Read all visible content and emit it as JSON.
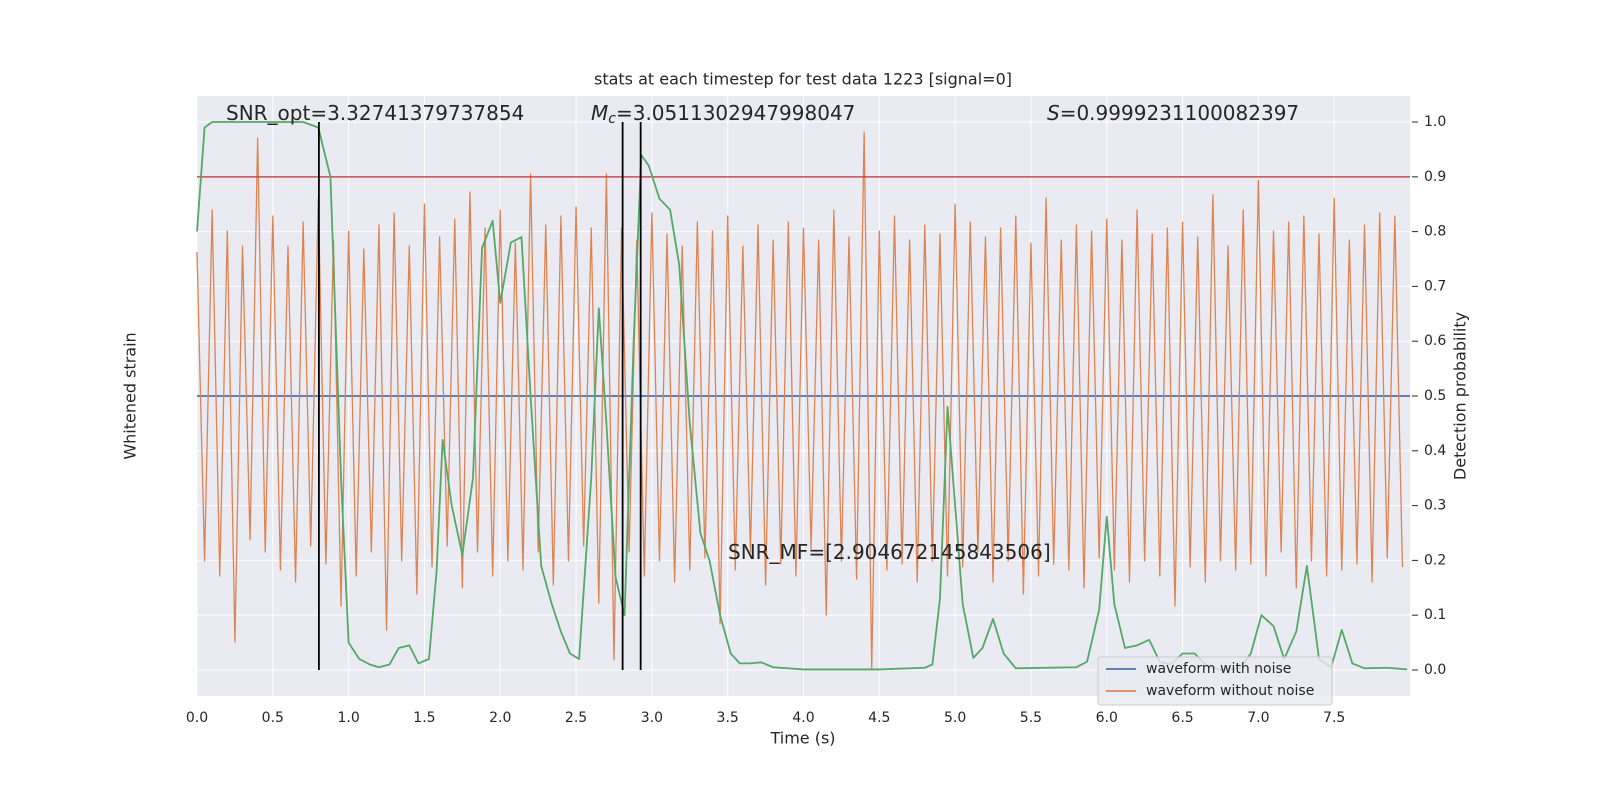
{
  "chart_data": {
    "type": "line",
    "title": "stats at each timestep for test data 1223 [signal=0]",
    "xlabel": "Time (s)",
    "ylabel": "Whitened strain",
    "y2label": "Detection probability",
    "xlim": [
      0,
      8
    ],
    "xticks": [
      {
        "value": 0,
        "label": "0.0"
      },
      {
        "value": 0.5,
        "label": "0.5"
      },
      {
        "value": 1,
        "label": "1.0"
      },
      {
        "value": 1.5,
        "label": "1.5"
      },
      {
        "value": 2,
        "label": "2.0"
      },
      {
        "value": 2.5,
        "label": "2.5"
      },
      {
        "value": 3,
        "label": "3.0"
      },
      {
        "value": 3.5,
        "label": "3.5"
      },
      {
        "value": 4,
        "label": "4.0"
      },
      {
        "value": 4.5,
        "label": "4.5"
      },
      {
        "value": 5,
        "label": "5.0"
      },
      {
        "value": 5.5,
        "label": "5.5"
      },
      {
        "value": 6,
        "label": "6.0"
      },
      {
        "value": 6.5,
        "label": "6.5"
      },
      {
        "value": 7,
        "label": "7.0"
      },
      {
        "value": 7.5,
        "label": "7.5"
      }
    ],
    "ylim": [
      -1,
      1
    ],
    "y2lim": [
      -0.0475,
      1.0475
    ],
    "y2ticks": [
      {
        "value": 0,
        "label": "0.0"
      },
      {
        "value": 0.1,
        "label": "0.1"
      },
      {
        "value": 0.2,
        "label": "0.2"
      },
      {
        "value": 0.3,
        "label": "0.3"
      },
      {
        "value": 0.4,
        "label": "0.4"
      },
      {
        "value": 0.5,
        "label": "0.5"
      },
      {
        "value": 0.6,
        "label": "0.6"
      },
      {
        "value": 0.7,
        "label": "0.7"
      },
      {
        "value": 0.8,
        "label": "0.8"
      },
      {
        "value": 0.9,
        "label": "0.9"
      },
      {
        "value": 1,
        "label": "1.0"
      }
    ],
    "grid": true,
    "legend": "lower right",
    "background": "#eaeaf2",
    "series": [
      {
        "name": "waveform with noise",
        "color": "#4c72b0",
        "x": [
          0,
          8
        ],
        "values": [
          0,
          0
        ]
      },
      {
        "name": "waveform without noise",
        "color": "#dd8452",
        "x": [
          0,
          0.05,
          0.1,
          0.15,
          0.2,
          0.25,
          0.3,
          0.35,
          0.4,
          0.45,
          0.5,
          0.55,
          0.6,
          0.65,
          0.7,
          0.75,
          0.8,
          0.85,
          0.9,
          0.95,
          1,
          1.05,
          1.1,
          1.15,
          1.2,
          1.25,
          1.3,
          1.35,
          1.4,
          1.45,
          1.5,
          1.55,
          1.6,
          1.65,
          1.7,
          1.75,
          1.8,
          1.85,
          1.9,
          1.95,
          2,
          2.05,
          2.1,
          2.15,
          2.2,
          2.25,
          2.3,
          2.35,
          2.4,
          2.45,
          2.5,
          2.55,
          2.6,
          2.65,
          2.7,
          2.75,
          2.8,
          2.85,
          2.9,
          2.95,
          3,
          3.05,
          3.1,
          3.15,
          3.2,
          3.25,
          3.3,
          3.35,
          3.4,
          3.45,
          3.5,
          3.55,
          3.6,
          3.65,
          3.7,
          3.75,
          3.8,
          3.85,
          3.9,
          3.95,
          4,
          4.05,
          4.1,
          4.15,
          4.2,
          4.25,
          4.3,
          4.35,
          4.4,
          4.45,
          4.5,
          4.55,
          4.6,
          4.65,
          4.7,
          4.75,
          4.8,
          4.85,
          4.9,
          4.95,
          5,
          5.05,
          5.1,
          5.15,
          5.2,
          5.25,
          5.3,
          5.35,
          5.4,
          5.45,
          5.5,
          5.55,
          5.6,
          5.65,
          5.7,
          5.75,
          5.8,
          5.85,
          5.9,
          5.95,
          6,
          6.05,
          6.1,
          6.15,
          6.2,
          6.25,
          6.3,
          6.35,
          6.4,
          6.45,
          6.5,
          6.55,
          6.6,
          6.65,
          6.7,
          6.75,
          6.8,
          6.85,
          6.9,
          6.95,
          7,
          7.05,
          7.1,
          7.15,
          7.2,
          7.25,
          7.3,
          7.35,
          7.4,
          7.45,
          7.5,
          7.55,
          7.6,
          7.65,
          7.7,
          7.75,
          7.8,
          7.85,
          7.9,
          7.95
        ],
        "values": [
          0.48,
          -0.55,
          0.62,
          -0.6,
          0.55,
          -0.82,
          0.5,
          -0.48,
          0.86,
          -0.52,
          0.6,
          -0.58,
          0.5,
          -0.62,
          0.58,
          -0.5,
          0.66,
          -0.56,
          0.52,
          -0.7,
          0.55,
          -0.6,
          0.49,
          -0.52,
          0.57,
          -0.78,
          0.61,
          -0.55,
          0.5,
          -0.66,
          0.64,
          -0.57,
          0.53,
          -0.5,
          0.59,
          -0.64,
          0.68,
          -0.52,
          0.56,
          -0.6,
          0.62,
          -0.55,
          0.51,
          -0.58,
          0.74,
          -0.52,
          0.57,
          -0.63,
          0.6,
          -0.55,
          0.63,
          -0.5,
          0.56,
          -0.69,
          0.74,
          -0.88,
          0.56,
          -0.52,
          0.52,
          -0.6,
          0.61,
          -0.55,
          0.54,
          -0.62,
          0.5,
          -0.58,
          0.58,
          -0.54,
          0.55,
          -0.76,
          0.6,
          -0.58,
          0.5,
          -0.52,
          0.57,
          -0.63,
          0.52,
          -0.56,
          0.58,
          -0.6,
          0.56,
          -0.51,
          0.52,
          -0.73,
          0.62,
          -0.55,
          0.53,
          -0.61,
          0.88,
          -0.91,
          0.55,
          -0.58,
          0.6,
          -0.56,
          0.52,
          -0.62,
          0.57,
          -0.55,
          0.54,
          -0.6,
          0.64,
          -0.57,
          0.58,
          -0.52,
          0.53,
          -0.62,
          0.56,
          -0.55,
          0.6,
          -0.66,
          0.51,
          -0.6,
          0.66,
          -0.56,
          0.52,
          -0.58,
          0.57,
          -0.64,
          0.55,
          -0.54,
          0.59,
          -0.58,
          0.52,
          -0.62,
          0.62,
          -0.55,
          0.54,
          -0.6,
          0.56,
          -0.7,
          0.58,
          -0.57,
          0.53,
          -0.62,
          0.67,
          -0.55,
          0.5,
          -0.58,
          0.62,
          -0.56,
          0.72,
          -0.6,
          0.55,
          -0.52,
          0.58,
          -0.64,
          0.6,
          -0.55,
          0.54,
          -0.6,
          0.66,
          -0.58,
          0.52,
          -0.56,
          0.57,
          -0.62,
          0.61,
          -0.54,
          0.6,
          -0.57
        ]
      },
      {
        "color": "#55a868",
        "axis": "y2",
        "x": [
          0,
          0.05,
          0.1,
          0.3,
          0.5,
          0.7,
          0.8,
          0.88,
          0.95,
          1,
          1.07,
          1.14,
          1.2,
          1.27,
          1.33,
          1.4,
          1.46,
          1.53,
          1.58,
          1.62,
          1.68,
          1.75,
          1.82,
          1.88,
          1.95,
          2,
          2.07,
          2.14,
          2.2,
          2.27,
          2.34,
          2.4,
          2.46,
          2.52,
          2.6,
          2.65,
          2.7,
          2.76,
          2.82,
          2.88,
          2.93,
          2.98,
          3.05,
          3.12,
          3.18,
          3.25,
          3.32,
          3.38,
          3.45,
          3.52,
          3.58,
          3.65,
          3.72,
          3.8,
          4,
          4.5,
          4.8,
          4.85,
          4.9,
          4.95,
          5,
          5.05,
          5.12,
          5.18,
          5.25,
          5.32,
          5.4,
          5.8,
          5.87,
          5.95,
          6,
          6.05,
          6.12,
          6.2,
          6.28,
          6.35,
          6.42,
          6.5,
          6.58,
          6.65,
          6.75,
          6.88,
          6.95,
          7.02,
          7.1,
          7.17,
          7.25,
          7.32,
          7.4,
          7.48,
          7.55,
          7.62,
          7.7,
          7.85,
          7.98
        ],
        "values": [
          0.8,
          0.99,
          1,
          1,
          1,
          1,
          0.99,
          0.9,
          0.35,
          0.05,
          0.02,
          0.01,
          0.005,
          0.01,
          0.04,
          0.045,
          0.012,
          0.02,
          0.18,
          0.42,
          0.3,
          0.21,
          0.35,
          0.77,
          0.82,
          0.67,
          0.78,
          0.79,
          0.5,
          0.19,
          0.12,
          0.07,
          0.03,
          0.02,
          0.35,
          0.66,
          0.45,
          0.17,
          0.1,
          0.6,
          0.94,
          0.92,
          0.86,
          0.84,
          0.74,
          0.45,
          0.25,
          0.2,
          0.1,
          0.03,
          0.012,
          0.012,
          0.014,
          0.005,
          0.001,
          0.001,
          0.004,
          0.01,
          0.13,
          0.48,
          0.3,
          0.12,
          0.022,
          0.04,
          0.093,
          0.03,
          0.003,
          0.005,
          0.015,
          0.11,
          0.28,
          0.12,
          0.04,
          0.045,
          0.055,
          0.015,
          0.01,
          0.03,
          0.03,
          0.01,
          0,
          0.004,
          0.03,
          0.1,
          0.08,
          0.02,
          0.07,
          0.19,
          0.02,
          0.005,
          0.073,
          0.012,
          0.003,
          0.004,
          0.001
        ]
      }
    ],
    "hlines": [
      {
        "y": 0.9,
        "color": "#c44e52",
        "axis": "y2"
      }
    ],
    "vlines": {
      "x": [
        0.804,
        2.807,
        2.926
      ],
      "ymin": 0,
      "ymax": 1,
      "color": "#000000",
      "axis": "y2"
    },
    "annotations": [
      {
        "text": "SNR_opt=3.32741379737854"
      },
      {
        "symbol": "M",
        "subscript": "c",
        "text": "=3.0511302947998047"
      },
      {
        "symbol": "S",
        "text": "=0.9999231100082397"
      },
      {
        "text": "SNR_MF=[2.904672145843506]"
      }
    ]
  }
}
